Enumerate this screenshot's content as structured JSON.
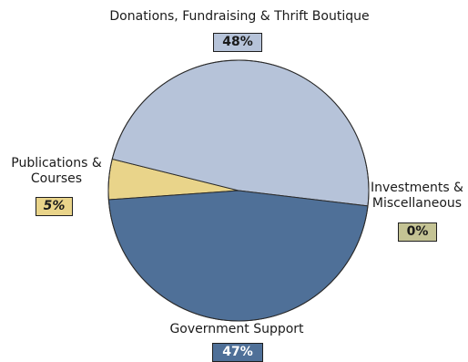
{
  "chart_data": {
    "type": "pie",
    "start_angle_deg": 184,
    "direction": "clockwise",
    "slices": [
      {
        "label": "Publications & Courses",
        "label_lines": [
          "Publications &",
          "Courses"
        ],
        "value": 5,
        "display": "5%",
        "color": "#e9d48a",
        "badge_text_color": "#1a1a1a",
        "badge_font_style": "italic"
      },
      {
        "label": "Donations, Fundraising & Thrift Boutique",
        "label_lines": [
          "Donations, Fundraising & Thrift Boutique"
        ],
        "value": 48,
        "display": "48%",
        "color": "#b6c3d9",
        "badge_text_color": "#1a1a1a",
        "badge_font_style": "normal"
      },
      {
        "label": "Investments & Miscellaneous",
        "label_lines": [
          "Investments &",
          "Miscellaneous"
        ],
        "value": 0,
        "display": "0%",
        "color": "#c4c394",
        "badge_text_color": "#1a1a1a",
        "badge_font_style": "normal"
      },
      {
        "label": "Government Support",
        "label_lines": [
          "Government Support"
        ],
        "value": 47,
        "display": "47%",
        "color": "#4f7098",
        "badge_text_color": "#ffffff",
        "badge_font_style": "normal"
      }
    ]
  }
}
